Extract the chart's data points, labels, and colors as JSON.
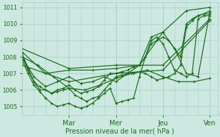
{
  "title": "",
  "xlabel": "Pression niveau de la mer( hPa )",
  "bg_color": "#cce8e0",
  "line_color": "#1a6b1a",
  "grid_color": "#a8cfc0",
  "ylim": [
    1004.5,
    1011.3
  ],
  "xlim": [
    0,
    100
  ],
  "day_ticks": [
    24,
    48,
    72,
    96
  ],
  "day_labels": [
    "Mar",
    "Mer",
    "Jeu",
    "Ven"
  ],
  "series": [
    {
      "x": [
        0,
        3,
        6,
        9,
        12,
        15,
        18,
        21,
        24,
        27,
        30,
        33,
        36,
        39,
        42,
        45,
        48,
        51,
        54,
        57,
        60,
        63,
        66,
        69,
        72,
        75,
        78,
        81,
        84,
        87,
        90,
        93,
        96
      ],
      "y": [
        1008.0,
        1007.2,
        1006.5,
        1006.0,
        1006.0,
        1005.8,
        1005.9,
        1006.0,
        1006.1,
        1005.7,
        1005.5,
        1005.3,
        1005.5,
        1005.6,
        1006.0,
        1006.4,
        1006.8,
        1006.9,
        1007.0,
        1007.0,
        1007.1,
        1007.0,
        1006.8,
        1006.6,
        1006.7,
        1006.8,
        1007.0,
        1007.5,
        1009.8,
        1010.2,
        1010.5,
        1010.6,
        1010.8
      ]
    },
    {
      "x": [
        0,
        3,
        6,
        9,
        12,
        15,
        18,
        21,
        24,
        27,
        30,
        33,
        36,
        39,
        42,
        45,
        48,
        51,
        54,
        57,
        60,
        63,
        66,
        69,
        72,
        75,
        78,
        81,
        84,
        87,
        90,
        93,
        96
      ],
      "y": [
        1007.8,
        1007.0,
        1006.3,
        1005.9,
        1005.5,
        1005.2,
        1005.0,
        1005.1,
        1005.2,
        1005.0,
        1004.9,
        1005.0,
        1005.2,
        1005.5,
        1005.8,
        1006.1,
        1005.2,
        1005.3,
        1005.4,
        1005.5,
        1006.8,
        1008.0,
        1008.8,
        1009.0,
        1009.2,
        1009.0,
        1008.5,
        1008.0,
        1010.0,
        1010.3,
        1010.5,
        1010.6,
        1010.6
      ]
    },
    {
      "x": [
        0,
        3,
        6,
        9,
        12,
        15,
        18,
        21,
        24,
        27,
        30,
        33,
        36,
        39,
        42,
        45,
        48,
        51,
        54,
        57,
        60,
        63,
        66,
        69,
        72,
        75,
        78,
        81,
        84,
        87,
        90,
        93,
        96
      ],
      "y": [
        1008.2,
        1007.3,
        1006.5,
        1006.2,
        1006.0,
        1005.8,
        1006.0,
        1006.1,
        1006.3,
        1006.0,
        1005.8,
        1005.9,
        1006.0,
        1006.2,
        1006.6,
        1007.0,
        1007.0,
        1007.1,
        1007.2,
        1007.4,
        1007.5,
        1008.0,
        1009.0,
        1009.2,
        1008.8,
        1008.0,
        1007.2,
        1007.0,
        1006.8,
        1007.0,
        1010.3,
        1010.5,
        1010.5
      ]
    },
    {
      "x": [
        0,
        6,
        12,
        18,
        24,
        30,
        36,
        42,
        48,
        54,
        60,
        66,
        72,
        78,
        84,
        90,
        96
      ],
      "y": [
        1008.0,
        1006.8,
        1006.2,
        1006.5,
        1006.8,
        1006.4,
        1006.5,
        1006.8,
        1006.5,
        1007.0,
        1007.5,
        1009.2,
        1009.5,
        1008.5,
        1007.0,
        1006.8,
        1010.7
      ]
    },
    {
      "x": [
        0,
        12,
        24,
        36,
        48,
        60,
        72,
        84,
        96
      ],
      "y": [
        1008.3,
        1007.0,
        1007.2,
        1007.2,
        1007.3,
        1007.5,
        1009.5,
        1010.8,
        1011.0
      ]
    },
    {
      "x": [
        0,
        24,
        48,
        72,
        96
      ],
      "y": [
        1008.5,
        1007.3,
        1007.5,
        1007.5,
        1010.3
      ]
    },
    {
      "x": [
        0,
        24,
        48,
        72,
        96
      ],
      "y": [
        1007.5,
        1006.5,
        1007.0,
        1007.2,
        1010.2
      ]
    },
    {
      "x": [
        0,
        8,
        16,
        24,
        32,
        40,
        48,
        56,
        64,
        72,
        80,
        88,
        96
      ],
      "y": [
        1008.0,
        1007.5,
        1006.8,
        1006.1,
        1006.0,
        1006.3,
        1006.7,
        1007.0,
        1007.2,
        1006.8,
        1006.5,
        1006.5,
        1006.7
      ]
    }
  ],
  "marker": "P",
  "markersize": 3,
  "linewidth": 0.9
}
